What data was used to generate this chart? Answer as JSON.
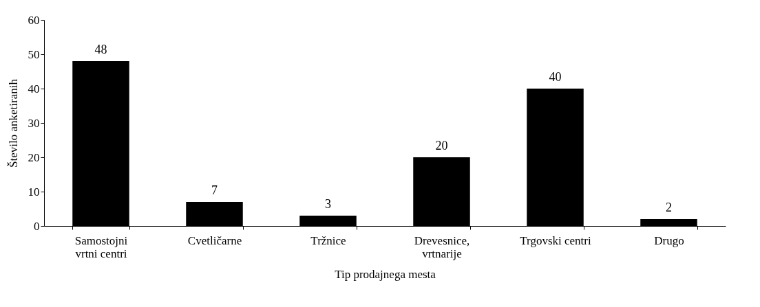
{
  "chart_data": {
    "type": "bar",
    "xlabel": "Tip prodajnega mesta",
    "ylabel": "Število anketiranih",
    "categories": [
      "Samostojni vrtni centri",
      "Cvetličarne",
      "Tržnice",
      "Drevesnice, vrtnarije",
      "Trgovski centri",
      "Drugo"
    ],
    "values": [
      48,
      7,
      3,
      20,
      40,
      2
    ],
    "color": "#000000",
    "ylim": [
      0,
      60
    ],
    "yticks": [
      0,
      10,
      20,
      30,
      40,
      50,
      60
    ],
    "grid": false,
    "data_labels": true
  }
}
